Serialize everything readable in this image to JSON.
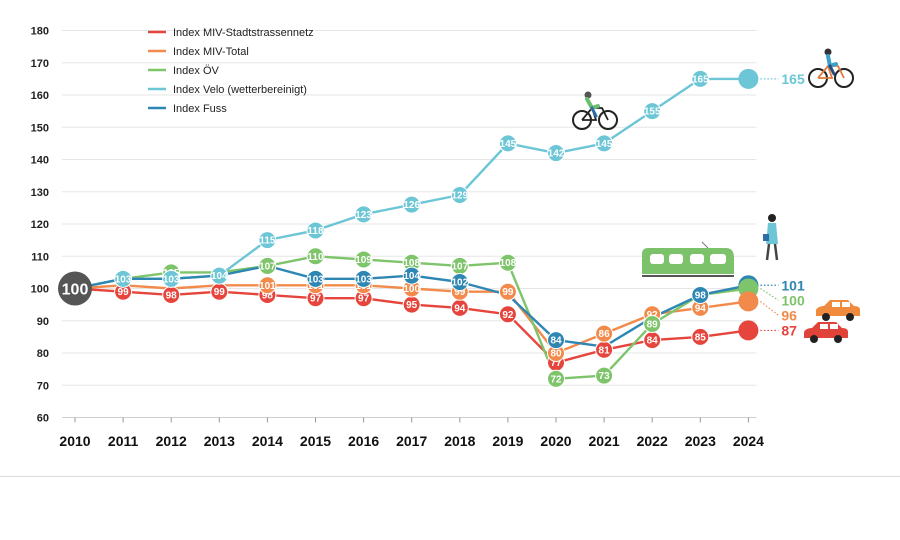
{
  "chart_data": {
    "type": "line",
    "title": "",
    "xlabel": "",
    "ylabel": "",
    "ylim": [
      60,
      180
    ],
    "yticks": [
      60,
      70,
      80,
      90,
      100,
      110,
      120,
      130,
      140,
      150,
      160,
      170,
      180
    ],
    "x": [
      "2010",
      "2011",
      "2012",
      "2013",
      "2014",
      "2015",
      "2016",
      "2017",
      "2018",
      "2019",
      "2020",
      "2021",
      "2022",
      "2023",
      "2024"
    ],
    "base_value": 100,
    "base_label": "100",
    "series": [
      {
        "name": "Index MIV-Stadtstrassennetz",
        "color": "#e5453c",
        "end_label": "87",
        "values": [
          100,
          99,
          98,
          99,
          98,
          97,
          97,
          95,
          94,
          92,
          77,
          81,
          84,
          85,
          87
        ],
        "point_labels": [
          "",
          "99",
          "98",
          "99",
          "98",
          "97",
          "97",
          "95",
          "94",
          "92",
          "77",
          "81",
          "84",
          "85",
          ""
        ]
      },
      {
        "name": "Index MIV-Total",
        "color": "#f28a4b",
        "end_label": "96",
        "values": [
          100,
          101,
          100,
          101,
          101,
          101,
          101,
          100,
          99,
          99,
          80,
          86,
          92,
          94,
          96
        ],
        "point_labels": [
          "",
          "",
          "",
          "",
          "101",
          "101",
          "101",
          "100",
          "99",
          "99",
          "80",
          "86",
          "92",
          "94",
          ""
        ]
      },
      {
        "name": "Index ÖV",
        "color": "#7ec46b",
        "end_label": "100",
        "values": [
          100,
          103,
          105,
          105,
          107,
          110,
          109,
          108,
          107,
          108,
          72,
          73,
          89,
          98,
          100
        ],
        "point_labels": [
          "",
          "",
          "105",
          "",
          "107",
          "110",
          "109",
          "108",
          "107",
          "108",
          "72",
          "73",
          "89",
          "",
          ""
        ]
      },
      {
        "name": "Index Velo (wetterbereinigt)",
        "color": "#6cc6d6",
        "end_label": "165",
        "values": [
          100,
          103,
          103,
          104,
          115,
          118,
          123,
          126,
          129,
          145,
          142,
          145,
          155,
          165,
          165
        ],
        "point_labels": [
          "",
          "103",
          "103",
          "104",
          "115",
          "118",
          "123",
          "126",
          "129",
          "145",
          "142",
          "145",
          "155",
          "165",
          ""
        ]
      },
      {
        "name": "Index Fuss",
        "color": "#2e86b3",
        "end_label": "101",
        "values": [
          100,
          103,
          103,
          104,
          107,
          103,
          103,
          104,
          102,
          98,
          84,
          82,
          91,
          98,
          101
        ],
        "point_labels": [
          "",
          "",
          "",
          "",
          "",
          "103",
          "103",
          "104",
          "102",
          "",
          "84",
          "",
          "",
          "98",
          ""
        ]
      }
    ],
    "legend_position": "top-left"
  },
  "icons": {
    "cyclist": "cyclist-icon",
    "cyclist_woman": "cyclist-woman-icon",
    "tram": "tram-icon",
    "pedestrian": "pedestrian-icon",
    "car_orange": "car-orange-icon",
    "car_red": "car-red-icon"
  }
}
